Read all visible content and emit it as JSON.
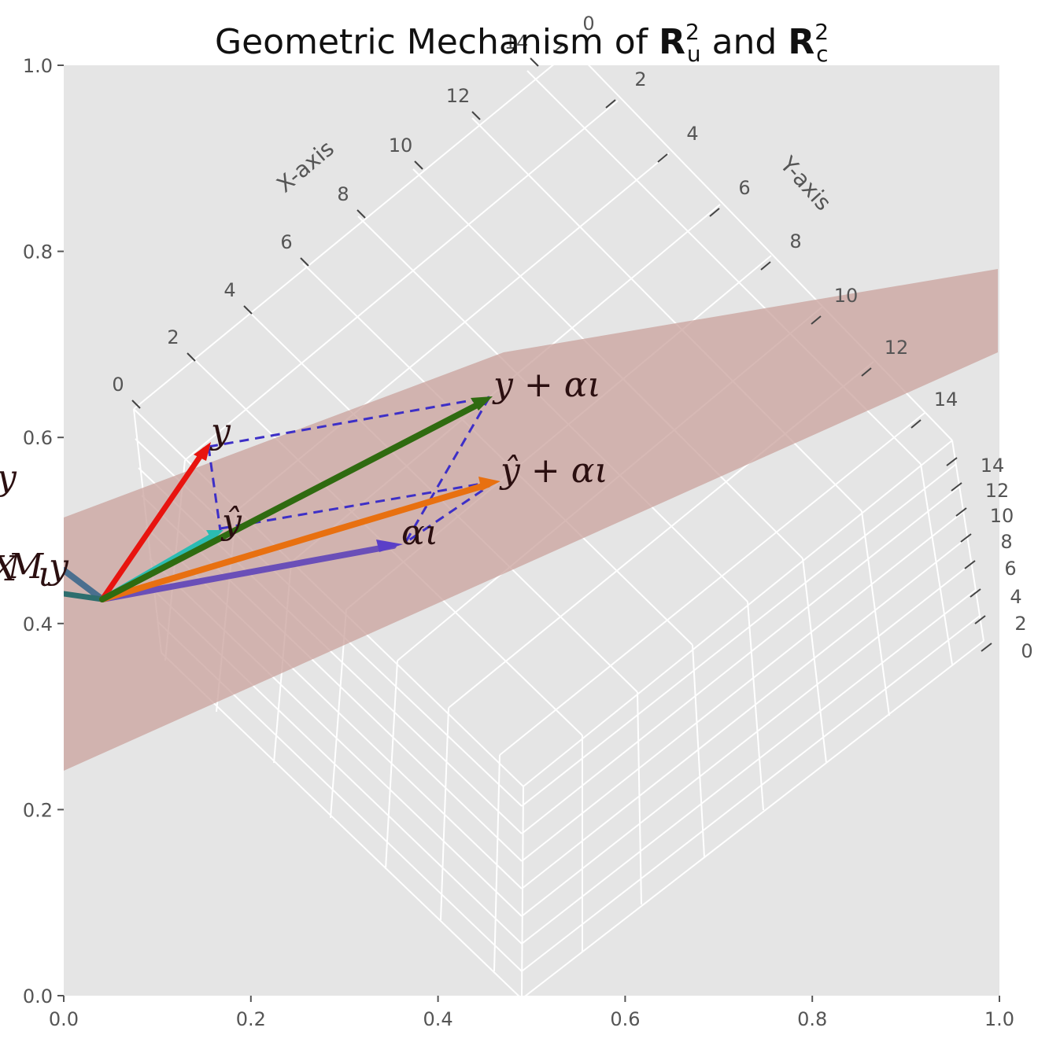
{
  "title": {
    "pre": "Geometric Mechanism of ",
    "r1": "R",
    "r1_sup": "2",
    "r1_sub": "u",
    "mid": " and ",
    "r2": "R",
    "r2_sup": "2",
    "r2_sub": "c"
  },
  "outer_axes": {
    "x_ticks": [
      "0.0",
      "0.2",
      "0.4",
      "0.6",
      "0.8",
      "1.0"
    ],
    "y_ticks": [
      "0.0",
      "0.2",
      "0.4",
      "0.6",
      "0.8",
      "1.0"
    ]
  },
  "axes3d": {
    "x_label": "X-axis",
    "y_label": "Y-axis",
    "x_ticks": [
      "0",
      "2",
      "4",
      "6",
      "8",
      "10",
      "12",
      "14"
    ],
    "y_ticks": [
      "0",
      "2",
      "4",
      "6",
      "8",
      "10",
      "12",
      "14"
    ],
    "z_ticks": [
      "0",
      "2",
      "4",
      "6",
      "8",
      "10",
      "12",
      "14"
    ]
  },
  "vectors": [
    {
      "id": "y",
      "label": "y",
      "color": "#e8140f"
    },
    {
      "id": "y-hat",
      "label": "ŷ",
      "color": "#2bbcb3"
    },
    {
      "id": "y-plus-alpha-iota",
      "label": "y + αι",
      "color": "#2f6b10"
    },
    {
      "id": "y-hat-plus-alpha-iota",
      "label": "ŷ + αι",
      "color": "#e87010"
    },
    {
      "id": "alpha-iota",
      "label": "αι",
      "color": "#6a4fb8"
    },
    {
      "id": "mx-m-iota-y",
      "label": "M",
      "color": "#4a6f8f"
    }
  ],
  "extra_labels": {
    "left_y": "y",
    "m_text": "M",
    "m_sub": "ι",
    "m_y": "y",
    "m_pre": "X"
  },
  "colors": {
    "axes_bg": "#e5e5e5",
    "plane": "#c9a29c",
    "grid": "#ffffff",
    "dashed": "#3d2fc7"
  }
}
